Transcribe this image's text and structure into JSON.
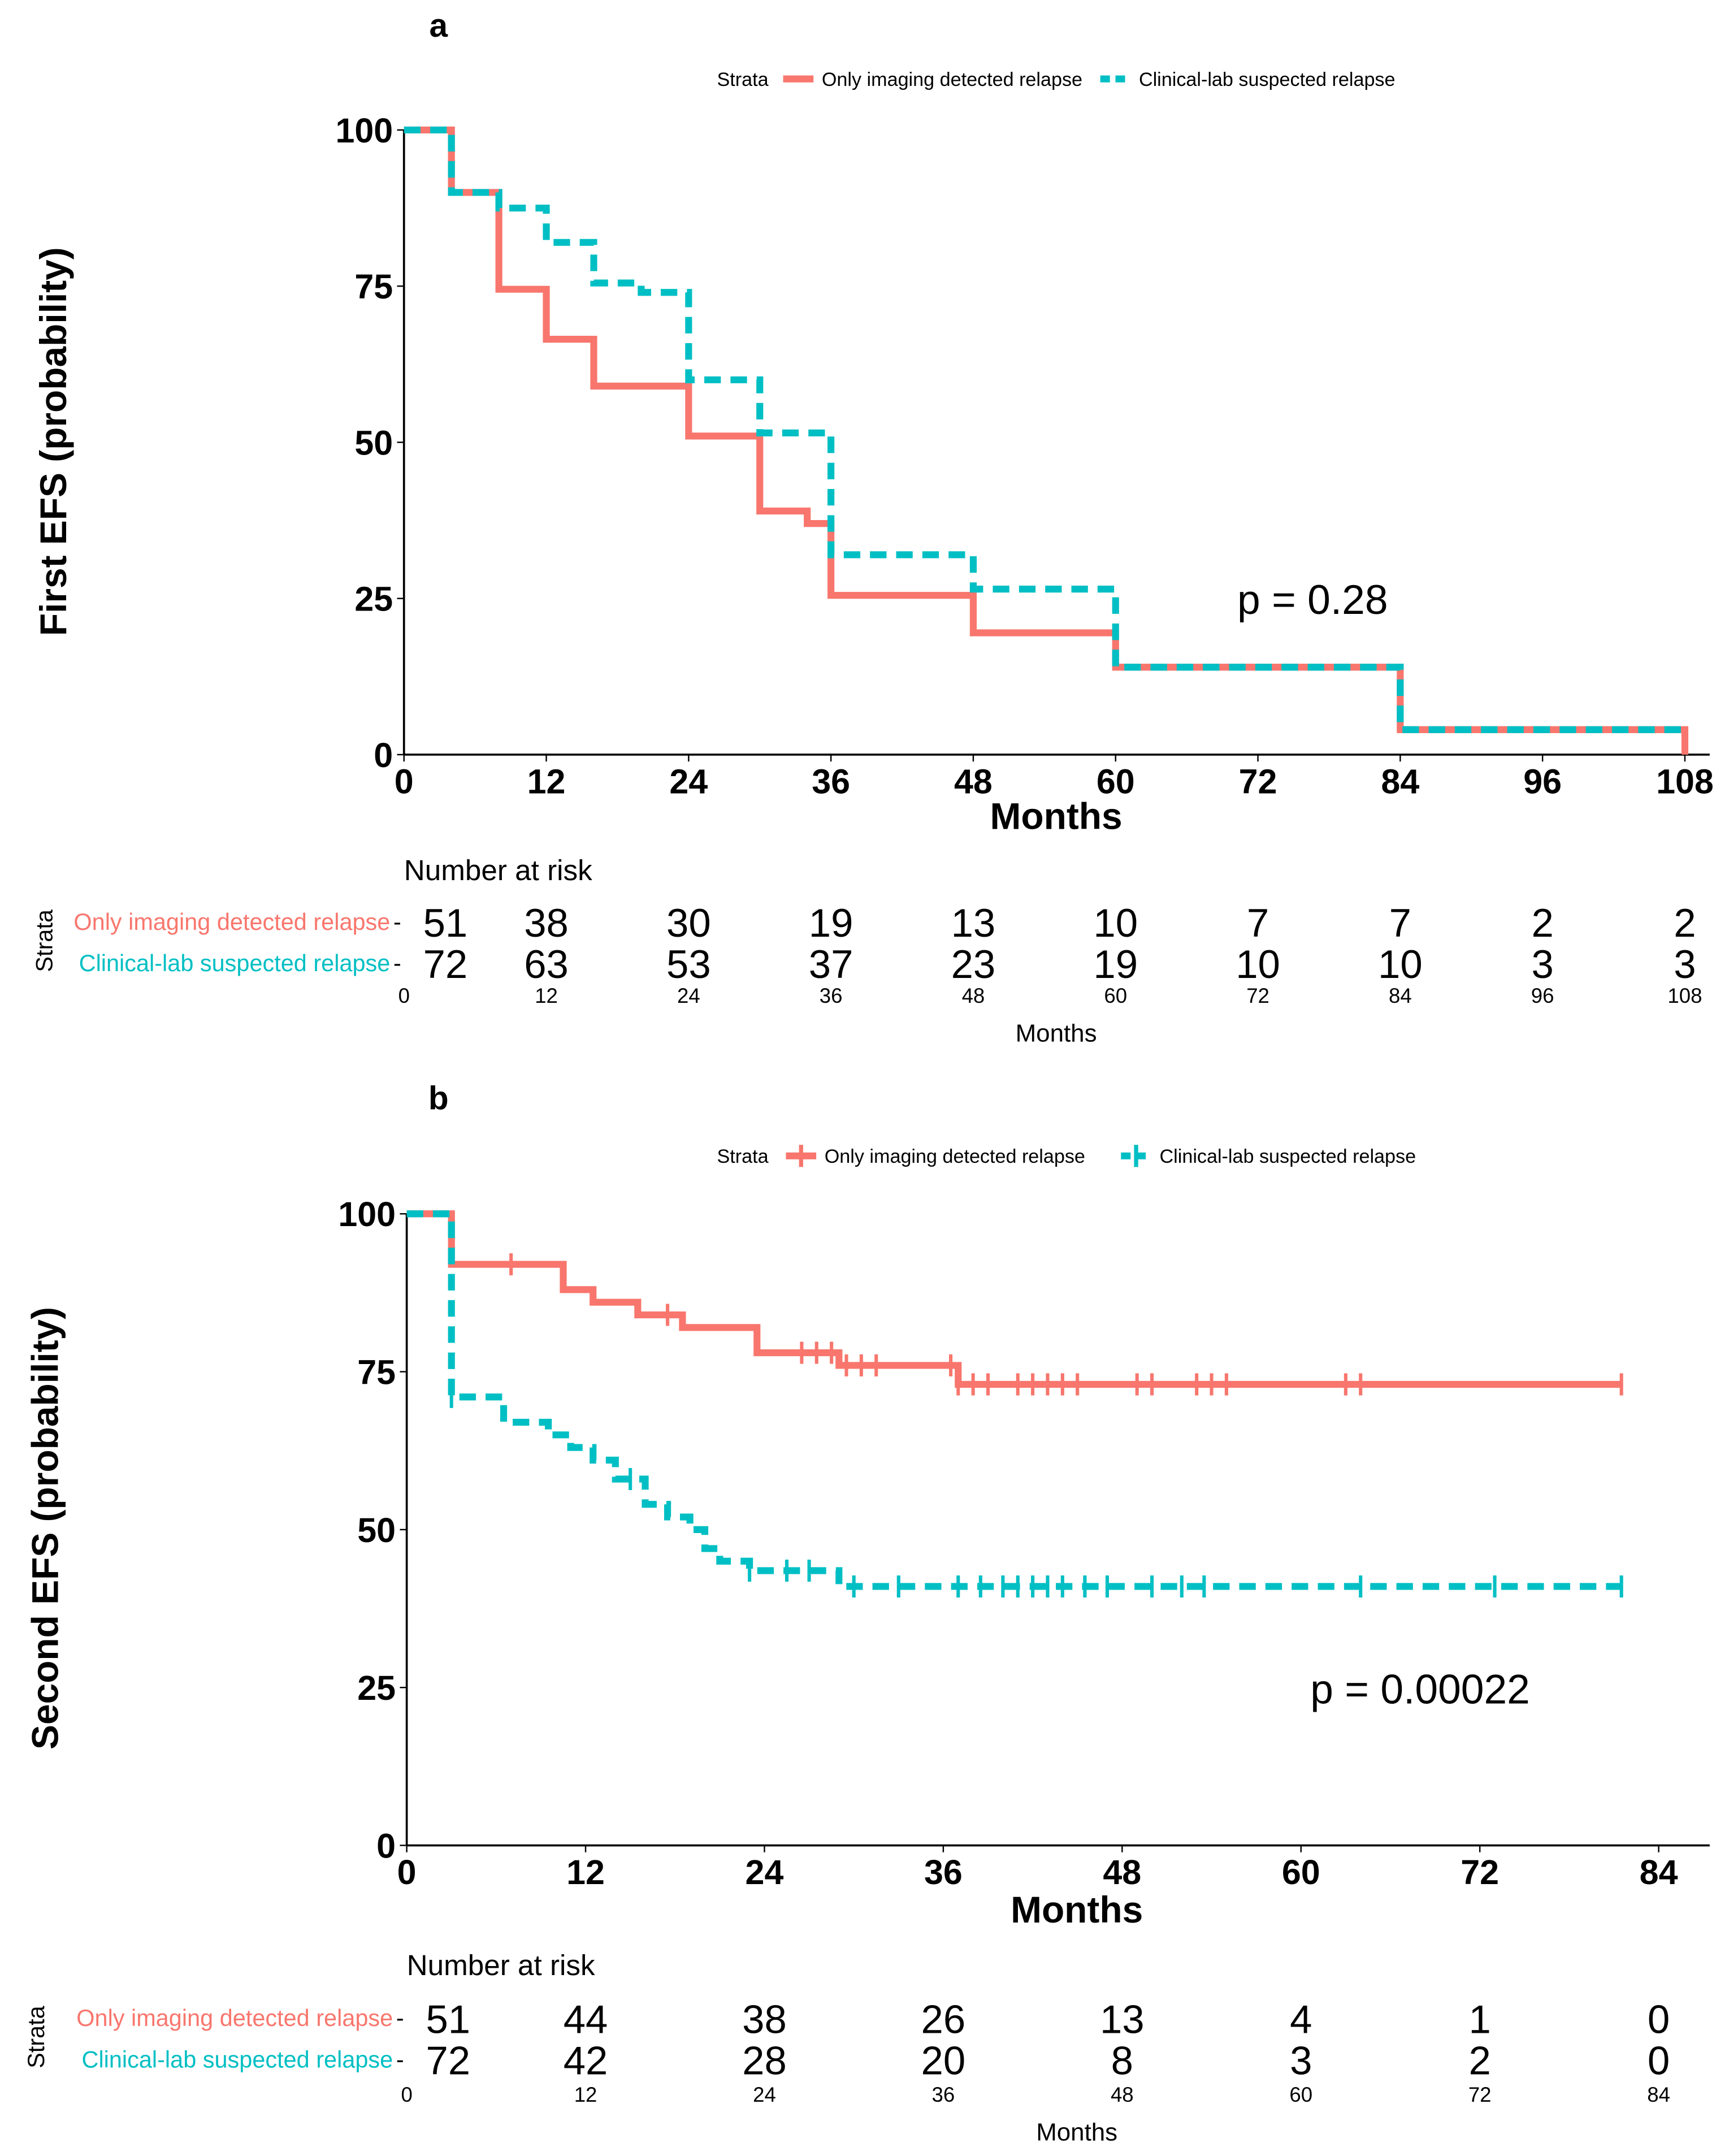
{
  "colors": {
    "imaging": "#F8766D",
    "clinical": "#00BFC4"
  },
  "chart_data": [
    {
      "type": "line",
      "panel_label": "a",
      "title": "",
      "xlabel": "Months",
      "ylabel": "First EFS (probability)",
      "xlim": [
        0,
        108
      ],
      "ylim": [
        0,
        100
      ],
      "xticks": [
        0,
        12,
        24,
        36,
        48,
        60,
        72,
        84,
        96,
        108
      ],
      "yticks": [
        0,
        25,
        50,
        75,
        100
      ],
      "legend": {
        "title": "Strata",
        "placement": "top",
        "entries": [
          "Only imaging detected relapse",
          "Clinical-lab suspected relapse"
        ]
      },
      "annotation": "p = 0.28",
      "series": [
        {
          "name": "Only imaging detected relapse",
          "steps": [
            [
              0,
              100
            ],
            [
              4,
              90
            ],
            [
              8,
              74.5
            ],
            [
              12,
              66.5
            ],
            [
              16,
              59
            ],
            [
              24,
              51
            ],
            [
              30,
              39
            ],
            [
              34,
              37
            ],
            [
              36,
              25.5
            ],
            [
              48,
              19.5
            ],
            [
              60,
              14
            ],
            [
              84,
              4
            ],
            [
              108,
              0
            ]
          ],
          "censor": []
        },
        {
          "name": "Clinical-lab suspected relapse",
          "steps": [
            [
              0,
              100
            ],
            [
              4,
              90
            ],
            [
              8,
              87.5
            ],
            [
              12,
              82
            ],
            [
              16,
              75.5
            ],
            [
              20,
              74
            ],
            [
              24,
              60
            ],
            [
              30,
              51.5
            ],
            [
              36,
              32
            ],
            [
              48,
              26.5
            ],
            [
              60,
              14
            ],
            [
              84,
              4
            ],
            [
              108,
              4
            ]
          ],
          "censor": []
        }
      ],
      "risk_table": {
        "title": "Number at risk",
        "ylabel": "Strata",
        "xlabel": "Months",
        "times": [
          0,
          12,
          24,
          36,
          48,
          60,
          72,
          84,
          96,
          108
        ],
        "rows": [
          {
            "name": "Only imaging detected relapse",
            "values": [
              51,
              38,
              30,
              19,
              13,
              10,
              7,
              7,
              2,
              2
            ]
          },
          {
            "name": "Clinical-lab suspected relapse",
            "values": [
              72,
              63,
              53,
              37,
              23,
              19,
              10,
              10,
              3,
              3
            ]
          }
        ]
      }
    },
    {
      "type": "line",
      "panel_label": "b",
      "title": "",
      "xlabel": "Months",
      "ylabel": "Second EFS (probability)",
      "xlim": [
        0,
        84
      ],
      "ylim": [
        0,
        100
      ],
      "xticks": [
        0,
        12,
        24,
        36,
        48,
        60,
        72,
        84
      ],
      "yticks": [
        0,
        25,
        50,
        75,
        100
      ],
      "legend": {
        "title": "Strata",
        "placement": "top",
        "entries": [
          "Only imaging detected relapse",
          "Clinical-lab suspected relapse"
        ]
      },
      "annotation": "p = 0.00022",
      "series": [
        {
          "name": "Only imaging detected relapse",
          "steps": [
            [
              0,
              100
            ],
            [
              3,
              92
            ],
            [
              10.5,
              88
            ],
            [
              12.5,
              86
            ],
            [
              15.5,
              84
            ],
            [
              18.5,
              82
            ],
            [
              23.5,
              78
            ],
            [
              29,
              76
            ],
            [
              37,
              73
            ],
            [
              81.5,
              73
            ]
          ],
          "censor": [
            7,
            17.5,
            26.5,
            27.5,
            28.5,
            29.5,
            30.5,
            31.5,
            36.5,
            37,
            38,
            39,
            41,
            42,
            43,
            44,
            45,
            49,
            50,
            53,
            54,
            55,
            63,
            64,
            81.5
          ]
        },
        {
          "name": "Clinical-lab suspected relapse",
          "steps": [
            [
              0,
              100
            ],
            [
              3,
              71
            ],
            [
              6.5,
              67
            ],
            [
              9.5,
              65
            ],
            [
              11,
              63
            ],
            [
              12.5,
              61
            ],
            [
              14,
              58
            ],
            [
              16,
              54
            ],
            [
              17.5,
              52
            ],
            [
              19,
              50
            ],
            [
              20,
              47
            ],
            [
              21,
              45
            ],
            [
              23,
              43.5
            ],
            [
              29,
              41
            ],
            [
              81.5,
              41
            ]
          ],
          "censor": [
            3,
            15,
            23,
            25.5,
            27,
            30,
            33,
            37,
            38.5,
            40,
            41,
            42,
            43,
            44,
            45.5,
            47,
            50,
            52,
            53.5,
            64,
            73,
            81.5
          ]
        }
      ],
      "risk_table": {
        "title": "Number at risk",
        "ylabel": "Strata",
        "xlabel": "Months",
        "times": [
          0,
          12,
          24,
          36,
          48,
          60,
          72,
          84
        ],
        "rows": [
          {
            "name": "Only imaging detected relapse",
            "values": [
              51,
              44,
              38,
              26,
              13,
              4,
              1,
              0
            ]
          },
          {
            "name": "Clinical-lab suspected relapse",
            "values": [
              72,
              42,
              28,
              20,
              8,
              3,
              2,
              0
            ]
          }
        ]
      }
    }
  ]
}
